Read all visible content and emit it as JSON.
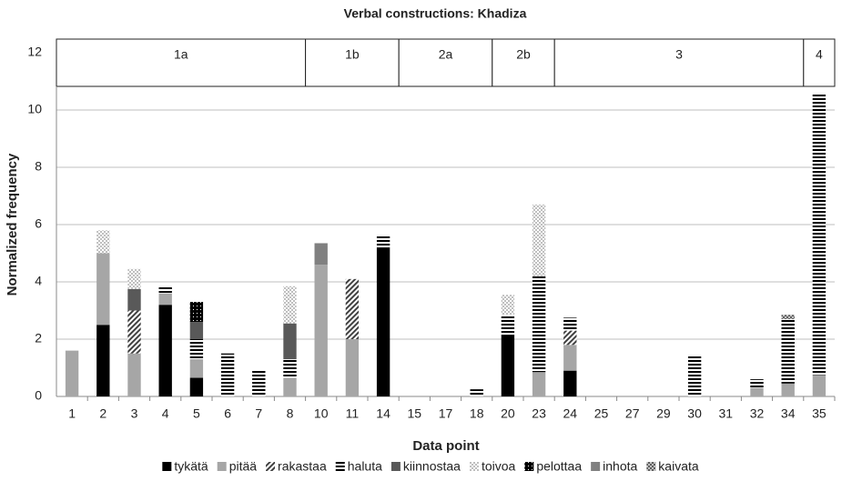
{
  "chart_data": {
    "type": "stacked_bar",
    "title": "Verbal constructions: Khadiza",
    "x_label": "Data point",
    "y_label": "Normalized frequency",
    "categories": [
      "1",
      "2",
      "3",
      "4",
      "5",
      "6",
      "7",
      "8",
      "10",
      "11",
      "14",
      "15",
      "17",
      "18",
      "20",
      "23",
      "24",
      "25",
      "27",
      "29",
      "30",
      "31",
      "32",
      "34",
      "35"
    ],
    "groups": [
      {
        "label": "1a",
        "from": "1",
        "to": "8"
      },
      {
        "label": "1b",
        "from": "10",
        "to": "14"
      },
      {
        "label": "2a",
        "from": "15",
        "to": "18"
      },
      {
        "label": "2b",
        "from": "20",
        "to": "23"
      },
      {
        "label": "3",
        "from": "24",
        "to": "34"
      },
      {
        "label": "4",
        "from": "35",
        "to": "35"
      }
    ],
    "series": [
      {
        "name": "tykätä",
        "color": "#000000",
        "pattern": "solid",
        "values": [
          0,
          2.5,
          0,
          3.2,
          0.65,
          0,
          0,
          0,
          0,
          0,
          5.2,
          0,
          0,
          0,
          2.15,
          0,
          0.9,
          0,
          0,
          0,
          0,
          0,
          0,
          0,
          0
        ]
      },
      {
        "name": "pitää",
        "color": "#a6a6a6",
        "pattern": "solid",
        "values": [
          1.6,
          2.5,
          1.5,
          0.4,
          0.65,
          0,
          0,
          0.65,
          4.6,
          2.0,
          0,
          0,
          0,
          0,
          0,
          0.85,
          0.9,
          0,
          0,
          0,
          0,
          0,
          0.3,
          0.45,
          0.75
        ]
      },
      {
        "name": "rakastaa",
        "color": "#404040",
        "pattern": "diagonal",
        "values": [
          0,
          0,
          1.5,
          0,
          0,
          0,
          0,
          0,
          0,
          2.1,
          0,
          0,
          0,
          0,
          0,
          0,
          0.5,
          0,
          0,
          0,
          0,
          0,
          0,
          0,
          0
        ]
      },
      {
        "name": "haluta",
        "color": "#000000",
        "pattern": "horizontal",
        "values": [
          0,
          0,
          0,
          0.25,
          0.7,
          1.5,
          0.95,
          0.65,
          0,
          0,
          0.45,
          0,
          0,
          0.25,
          0.7,
          3.35,
          0.45,
          0,
          0,
          0,
          1.4,
          0,
          0.3,
          2.25,
          9.85
        ]
      },
      {
        "name": "kiinnostaa",
        "color": "#595959",
        "pattern": "solid",
        "values": [
          0,
          0,
          0.75,
          0,
          0.6,
          0,
          0,
          1.25,
          0,
          0,
          0,
          0,
          0,
          0,
          0,
          0,
          0,
          0,
          0,
          0,
          0,
          0,
          0,
          0,
          0
        ]
      },
      {
        "name": "toivoa",
        "color": "#bfbfbf",
        "pattern": "lightdots",
        "values": [
          0,
          0.8,
          0.7,
          0,
          0,
          0,
          0,
          1.3,
          0,
          0,
          0,
          0,
          0,
          0,
          0.7,
          2.5,
          0,
          0,
          0,
          0,
          0,
          0,
          0,
          0,
          0
        ]
      },
      {
        "name": "pelottaa",
        "color": "#000000",
        "pattern": "darkdots",
        "values": [
          0,
          0,
          0,
          0,
          0.7,
          0,
          0,
          0,
          0,
          0,
          0,
          0,
          0,
          0,
          0,
          0,
          0,
          0,
          0,
          0,
          0,
          0,
          0,
          0,
          0
        ]
      },
      {
        "name": "inhota",
        "color": "#808080",
        "pattern": "solid",
        "values": [
          0,
          0,
          0,
          0,
          0,
          0,
          0,
          0,
          0.75,
          0,
          0,
          0,
          0,
          0,
          0,
          0,
          0,
          0,
          0,
          0,
          0,
          0,
          0,
          0,
          0
        ]
      },
      {
        "name": "kaivata",
        "color": "#808080",
        "pattern": "checker",
        "values": [
          0,
          0,
          0,
          0,
          0,
          0,
          0,
          0,
          0,
          0,
          0,
          0,
          0,
          0,
          0,
          0,
          0,
          0,
          0,
          0,
          0,
          0,
          0,
          0.15,
          0
        ]
      }
    ],
    "ylim": [
      0,
      12
    ],
    "yticks": [
      0,
      2,
      4,
      6,
      8,
      10,
      12
    ],
    "grid": true,
    "legend": "bottom"
  }
}
